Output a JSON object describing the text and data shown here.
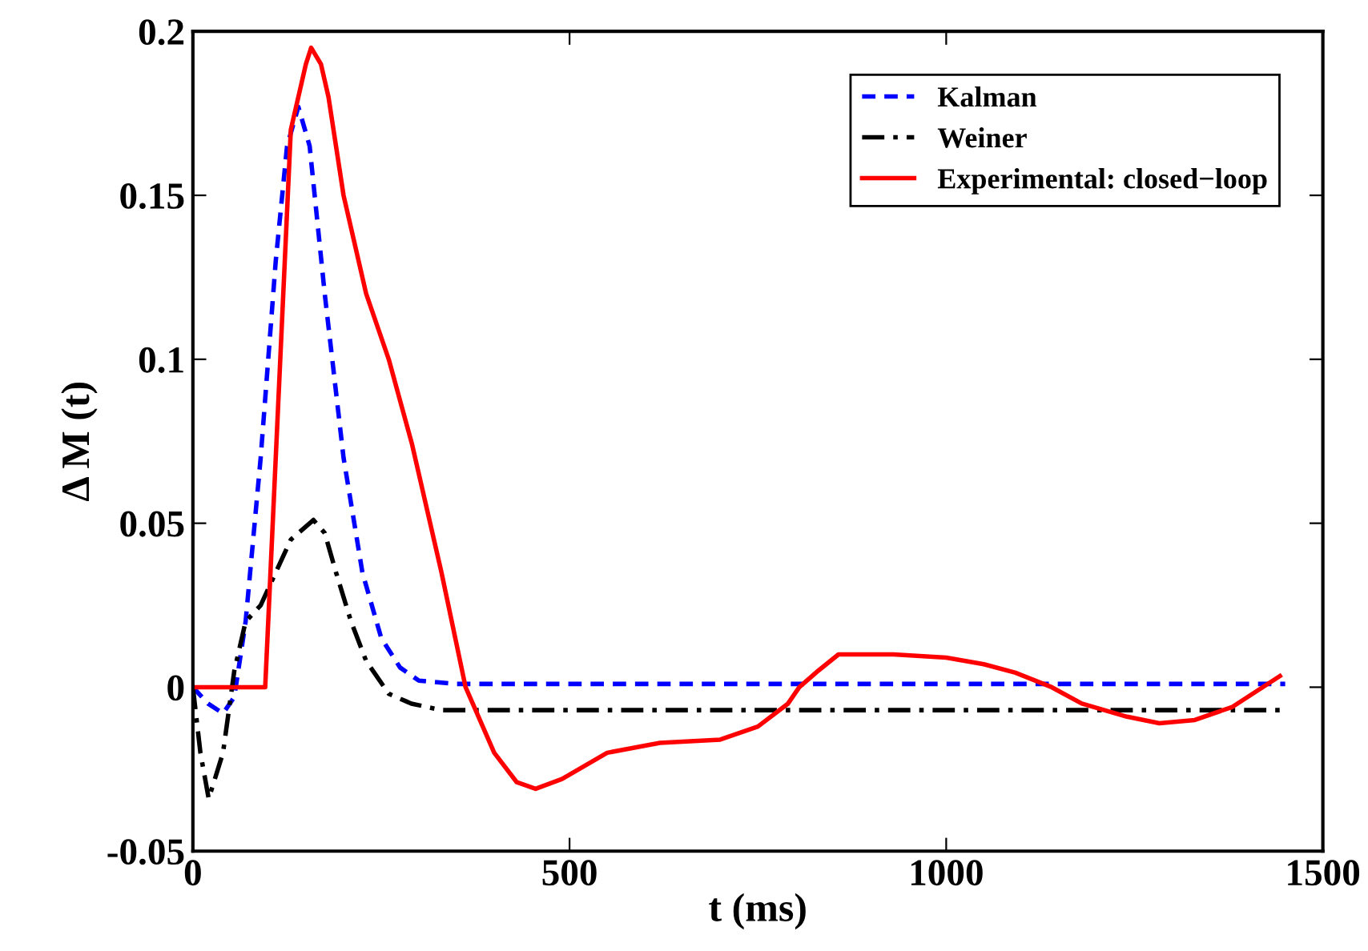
{
  "chart_data": {
    "type": "line",
    "xlabel": "t (ms)",
    "ylabel": "Δ M (t)",
    "xlim": [
      0,
      1500
    ],
    "ylim": [
      -0.05,
      0.2
    ],
    "xticks": [
      0,
      500,
      1000,
      1500
    ],
    "yticks": [
      -0.05,
      0,
      0.05,
      0.1,
      0.15,
      0.2
    ],
    "grid": false,
    "legend": "top right",
    "series": [
      {
        "name": "Kalman",
        "color": "#0000ff",
        "line_style": "dashed",
        "x": [
          0,
          20,
          40,
          55,
          70,
          90,
          110,
          125,
          140,
          155,
          175,
          200,
          225,
          250,
          275,
          300,
          350,
          1450
        ],
        "values": [
          0,
          -0.005,
          -0.008,
          -0.003,
          0.02,
          0.07,
          0.13,
          0.165,
          0.177,
          0.165,
          0.12,
          0.07,
          0.035,
          0.015,
          0.006,
          0.002,
          0.001,
          0.001
        ]
      },
      {
        "name": "Weiner",
        "color": "#000000",
        "line_style": "dashdot",
        "x": [
          0,
          10,
          21,
          40,
          55,
          70,
          90,
          110,
          130,
          160,
          175,
          190,
          210,
          230,
          260,
          290,
          330,
          1450
        ],
        "values": [
          0,
          -0.02,
          -0.034,
          -0.02,
          0.005,
          0.02,
          0.025,
          0.035,
          0.045,
          0.051,
          0.047,
          0.035,
          0.02,
          0.008,
          -0.002,
          -0.005,
          -0.007,
          -0.007
        ]
      },
      {
        "name": "Experimental: closed−loop",
        "color": "#ff0000",
        "line_style": "solid",
        "x": [
          0,
          96,
          115,
          130,
          150,
          157,
          170,
          180,
          200,
          230,
          260,
          291,
          330,
          362,
          400,
          430,
          455,
          490,
          550,
          620,
          700,
          750,
          790,
          805,
          830,
          857,
          930,
          1000,
          1050,
          1092,
          1140,
          1180,
          1240,
          1283,
          1330,
          1380,
          1443
        ],
        "values": [
          0,
          0,
          0.095,
          0.17,
          0.19,
          0.195,
          0.19,
          0.18,
          0.15,
          0.12,
          0.1,
          0.074,
          0.035,
          0,
          -0.02,
          -0.029,
          -0.031,
          -0.028,
          -0.02,
          -0.017,
          -0.016,
          -0.012,
          -0.005,
          0,
          0.005,
          0.01,
          0.01,
          0.009,
          0.007,
          0.0044,
          0,
          -0.005,
          -0.009,
          -0.011,
          -0.01,
          -0.006,
          0.0034
        ]
      }
    ]
  }
}
